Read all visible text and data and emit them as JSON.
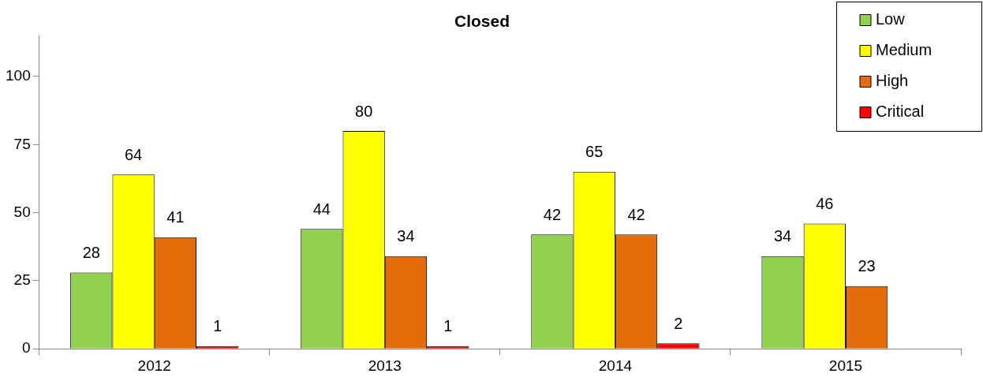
{
  "chart_data": {
    "type": "bar",
    "title": "Closed",
    "categories": [
      "2012",
      "2013",
      "2014",
      "2015"
    ],
    "series": [
      {
        "name": "Low",
        "color": "#92d050",
        "values": [
          28,
          44,
          42,
          34
        ]
      },
      {
        "name": "Medium",
        "color": "#ffff00",
        "values": [
          64,
          80,
          65,
          46
        ]
      },
      {
        "name": "High",
        "color": "#e46c0a",
        "values": [
          41,
          34,
          42,
          23
        ]
      },
      {
        "name": "Critical",
        "color": "#ff0000",
        "values": [
          1,
          1,
          2,
          null
        ]
      }
    ],
    "ylim": [
      0,
      115
    ],
    "yticks": [
      0,
      25,
      50,
      75,
      100
    ],
    "grid": false,
    "legend": "top right",
    "data_labels": true
  }
}
